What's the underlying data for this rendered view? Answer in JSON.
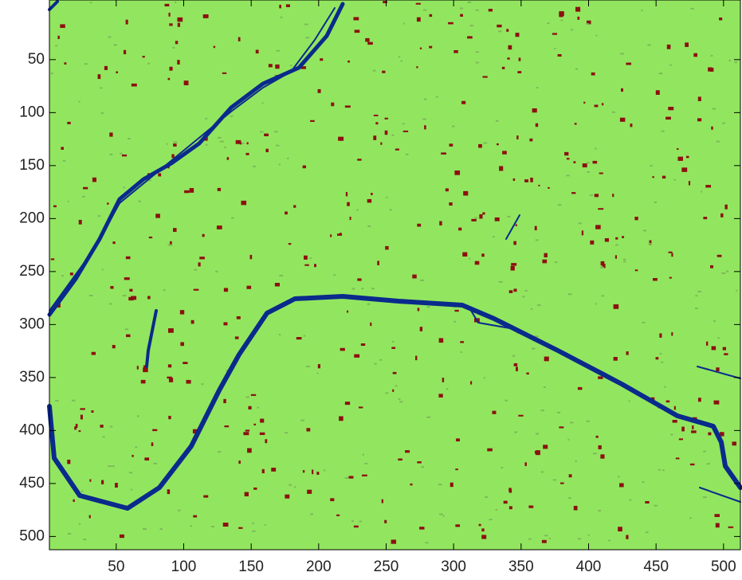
{
  "chart_data": {
    "type": "image",
    "xlim": [
      0.5,
      512.5
    ],
    "ylim": [
      0.5,
      512.5
    ],
    "xticks": [
      50,
      100,
      150,
      200,
      250,
      300,
      350,
      400,
      450,
      500
    ],
    "yticks": [
      50,
      100,
      150,
      200,
      250,
      300,
      350,
      400,
      450,
      500
    ],
    "background_color": "#92e65f",
    "river_color": "#0a2a8c",
    "speckle_color": "#8c1010"
  }
}
